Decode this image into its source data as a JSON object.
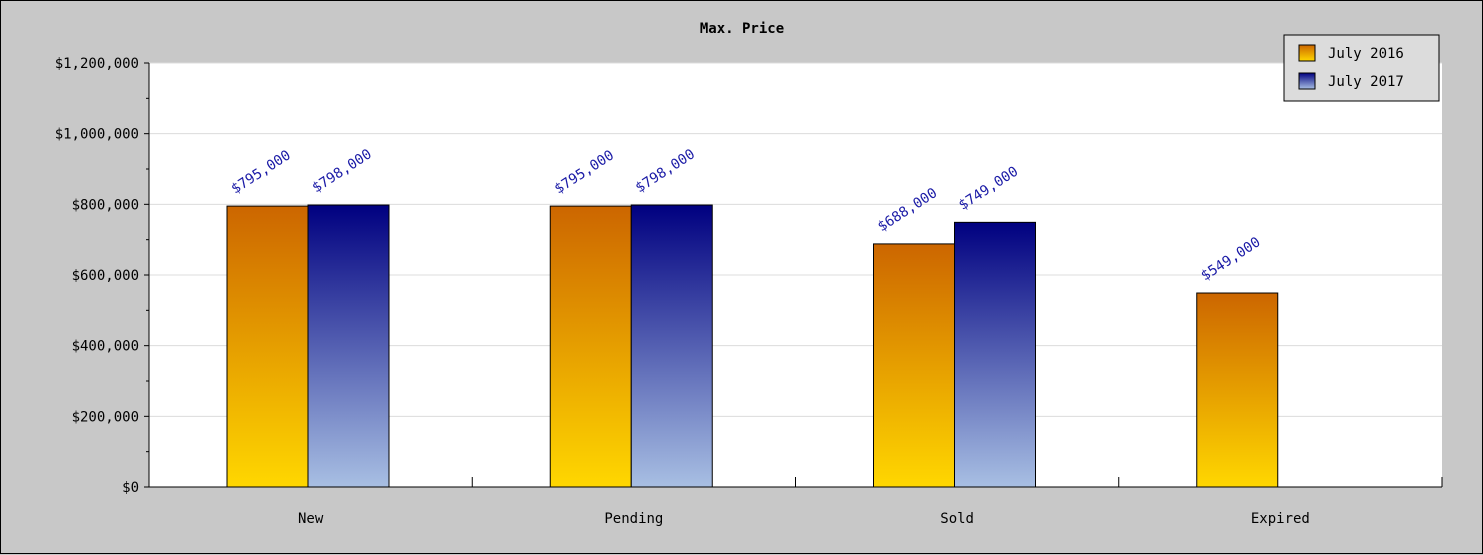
{
  "chart_data": {
    "type": "bar",
    "title": "Max. Price",
    "xlabel": "",
    "ylabel": "",
    "categories": [
      "New",
      "Pending",
      "Sold",
      "Expired"
    ],
    "series": [
      {
        "name": "July 2016",
        "values": [
          795000,
          795000,
          688000,
          549000
        ],
        "color_top": "#cc6600",
        "color_bottom": "#ffd700"
      },
      {
        "name": "July 2017",
        "values": [
          798000,
          798000,
          749000,
          null
        ],
        "color_top": "#000080",
        "color_bottom": "#a8bfe3"
      }
    ],
    "data_labels": [
      [
        "$795,000",
        "$795,000",
        "$688,000",
        "$549,000"
      ],
      [
        "$798,000",
        "$798,000",
        "$749,000",
        ""
      ]
    ],
    "ylim": [
      0,
      1200000
    ],
    "yticks": [
      0,
      200000,
      400000,
      600000,
      800000,
      1000000,
      1200000
    ],
    "ytick_labels": [
      "$0",
      "$200,000",
      "$400,000",
      "$600,000",
      "$800,000",
      "$1,000,000",
      "$1,200,000"
    ],
    "grid": true,
    "legend_position": "top-right",
    "label_color": "#1a1aa6"
  }
}
